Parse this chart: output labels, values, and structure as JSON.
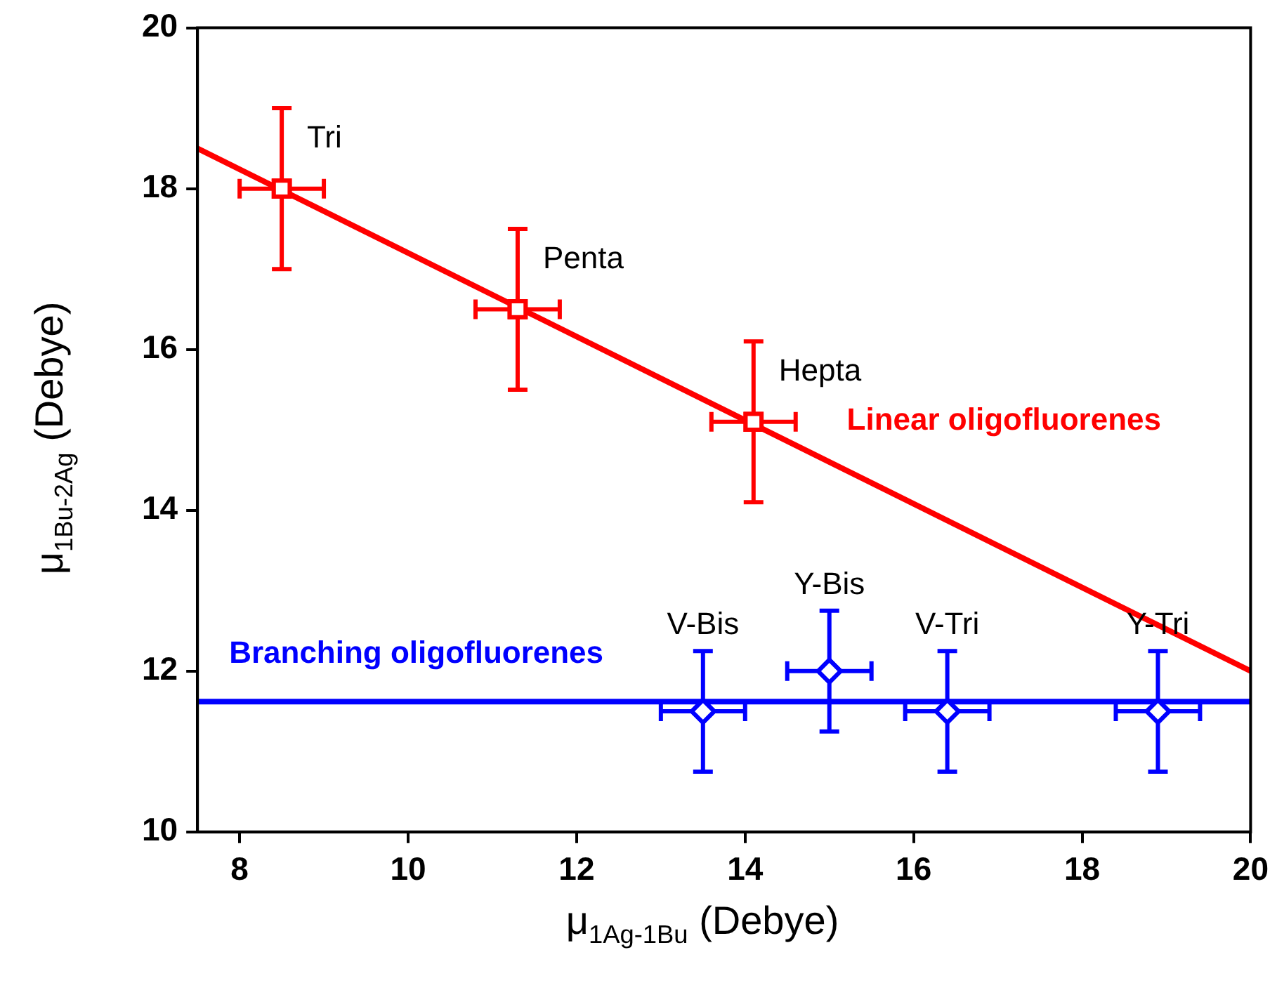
{
  "chart_data": {
    "type": "scatter",
    "xlabel": "μ$_{1A}$$_{g}$$_{-1B}$$_{u}$ (Debye)",
    "ylabel": "μ$_{1B}$$_{u}$$_{-2A}$$_{g}$ (Debye)",
    "xlim": [
      7.5,
      20
    ],
    "xticks": [
      8,
      10,
      12,
      14,
      16,
      18,
      20
    ],
    "ylim": [
      10,
      20
    ],
    "yticks": [
      10,
      12,
      14,
      16,
      18,
      20
    ],
    "grid": false,
    "legend": false,
    "series": [
      {
        "type": "scatter",
        "name": "Linear oligofluorenes",
        "color": "#ff0000",
        "marker": "square",
        "x": [
          8.5,
          11.3,
          14.1
        ],
        "values": [
          18,
          16.5,
          15.1
        ],
        "errors": [
          1,
          1,
          1
        ],
        "xerrors": [
          0.5,
          0.5,
          0.5
        ]
      },
      {
        "type": "line",
        "color": "#ff0000",
        "marker": "none",
        "x": [
          7.5,
          20
        ],
        "values": [
          18.5,
          12.0
        ]
      },
      {
        "type": "scatter",
        "name": "Branching oligofluorenes",
        "color": "#0000ff",
        "marker": "diamond",
        "x": [
          13.5,
          15,
          16.4,
          18.9
        ],
        "values": [
          11.5,
          12,
          11.5,
          11.5
        ],
        "errors": [
          0.75,
          0.75,
          0.75,
          0.75
        ],
        "xerrors": [
          0.5,
          0.5,
          0.5,
          0.5
        ]
      },
      {
        "type": "line",
        "color": "#0000ff",
        "marker": "none",
        "x": [
          7.5,
          20
        ],
        "values": [
          11.62,
          11.62
        ]
      }
    ],
    "annotations": [
      {
        "text": "Tri",
        "x": 8.5,
        "y": 18
      },
      {
        "text": "Penta",
        "x": 11.3,
        "y": 16.5
      },
      {
        "text": "Hepta",
        "x": 14.1,
        "y": 15.1
      },
      {
        "text": "V-Bis",
        "x": 13.5,
        "y": 11.5
      },
      {
        "text": "Y-Bis",
        "x": 15,
        "y": 12
      },
      {
        "text": "V-Tri",
        "x": 16.4,
        "y": 11.5
      },
      {
        "text": "Y-Tri",
        "x": 18.9,
        "y": 11.5
      }
    ]
  }
}
